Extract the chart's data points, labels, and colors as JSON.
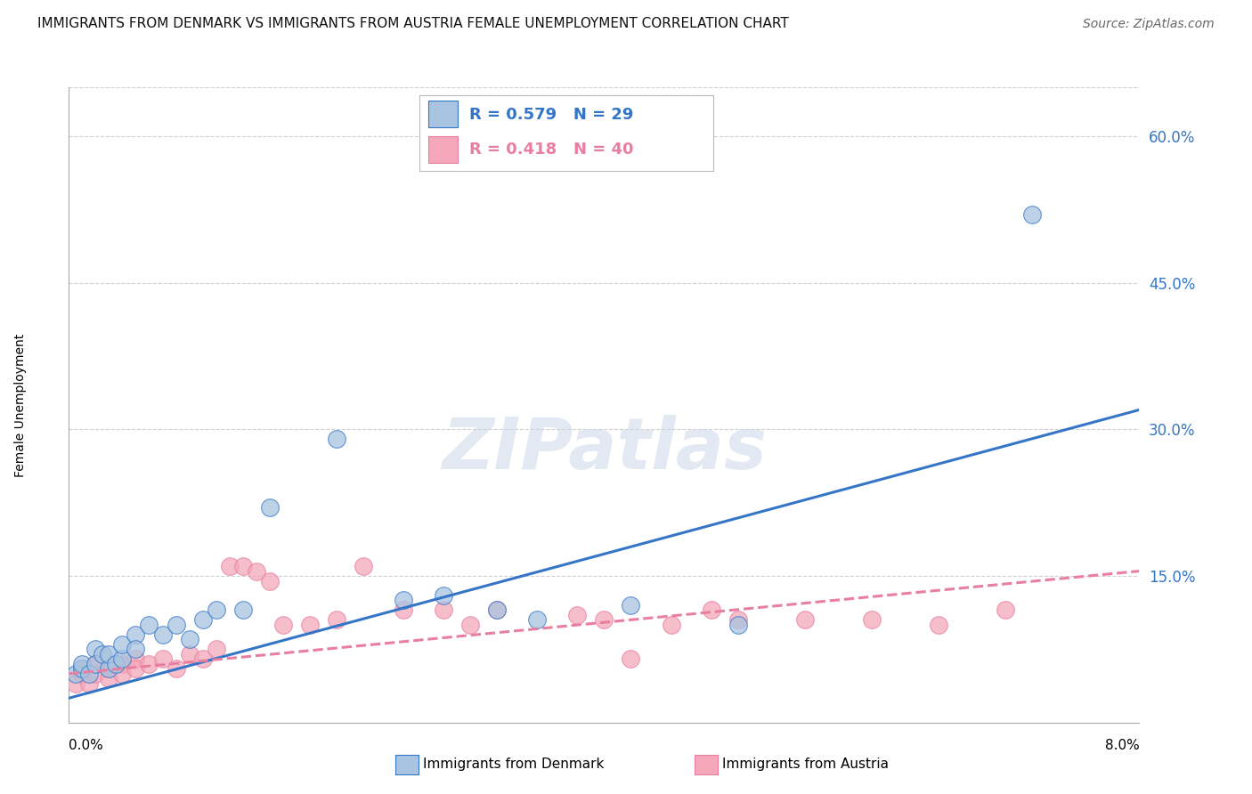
{
  "title": "IMMIGRANTS FROM DENMARK VS IMMIGRANTS FROM AUSTRIA FEMALE UNEMPLOYMENT CORRELATION CHART",
  "source": "Source: ZipAtlas.com",
  "ylabel": "Female Unemployment",
  "right_ytick_vals": [
    0.0,
    0.15,
    0.3,
    0.45,
    0.6
  ],
  "right_ytick_labels": [
    "",
    "15.0%",
    "30.0%",
    "45.0%",
    "60.0%"
  ],
  "xlim": [
    0.0,
    0.08
  ],
  "ylim": [
    0.0,
    0.65
  ],
  "denmark_color": "#a8c4e0",
  "austria_color": "#f4a7b9",
  "denmark_line_color": "#3575c8",
  "austria_line_color": "#e87fa0",
  "denmark_scatter_x": [
    0.0005,
    0.001,
    0.001,
    0.0015,
    0.002,
    0.002,
    0.0025,
    0.003,
    0.003,
    0.0035,
    0.004,
    0.004,
    0.005,
    0.005,
    0.006,
    0.007,
    0.008,
    0.009,
    0.01,
    0.011,
    0.013,
    0.015,
    0.02,
    0.025,
    0.028,
    0.032,
    0.035,
    0.042,
    0.05,
    0.072
  ],
  "denmark_scatter_y": [
    0.05,
    0.055,
    0.06,
    0.05,
    0.075,
    0.06,
    0.07,
    0.055,
    0.07,
    0.06,
    0.065,
    0.08,
    0.09,
    0.075,
    0.1,
    0.09,
    0.1,
    0.085,
    0.105,
    0.115,
    0.115,
    0.22,
    0.29,
    0.125,
    0.13,
    0.115,
    0.105,
    0.12,
    0.1,
    0.52
  ],
  "austria_scatter_x": [
    0.0005,
    0.001,
    0.001,
    0.0015,
    0.002,
    0.002,
    0.003,
    0.003,
    0.004,
    0.004,
    0.005,
    0.005,
    0.006,
    0.007,
    0.008,
    0.009,
    0.01,
    0.011,
    0.012,
    0.013,
    0.014,
    0.015,
    0.016,
    0.018,
    0.02,
    0.022,
    0.025,
    0.028,
    0.03,
    0.032,
    0.038,
    0.04,
    0.042,
    0.045,
    0.048,
    0.05,
    0.055,
    0.06,
    0.065,
    0.07
  ],
  "austria_scatter_y": [
    0.04,
    0.05,
    0.055,
    0.04,
    0.06,
    0.05,
    0.055,
    0.045,
    0.06,
    0.05,
    0.065,
    0.055,
    0.06,
    0.065,
    0.055,
    0.07,
    0.065,
    0.075,
    0.16,
    0.16,
    0.155,
    0.145,
    0.1,
    0.1,
    0.105,
    0.16,
    0.115,
    0.115,
    0.1,
    0.115,
    0.11,
    0.105,
    0.065,
    0.1,
    0.115,
    0.105,
    0.105,
    0.105,
    0.1,
    0.115
  ],
  "denmark_trend_x": [
    0.0,
    0.08
  ],
  "denmark_trend_y": [
    0.025,
    0.32
  ],
  "austria_trend_x": [
    0.0,
    0.08
  ],
  "austria_trend_y": [
    0.05,
    0.155
  ],
  "watermark_text": "ZIPatlas",
  "background_color": "#ffffff",
  "grid_color": "#d0d0d0"
}
